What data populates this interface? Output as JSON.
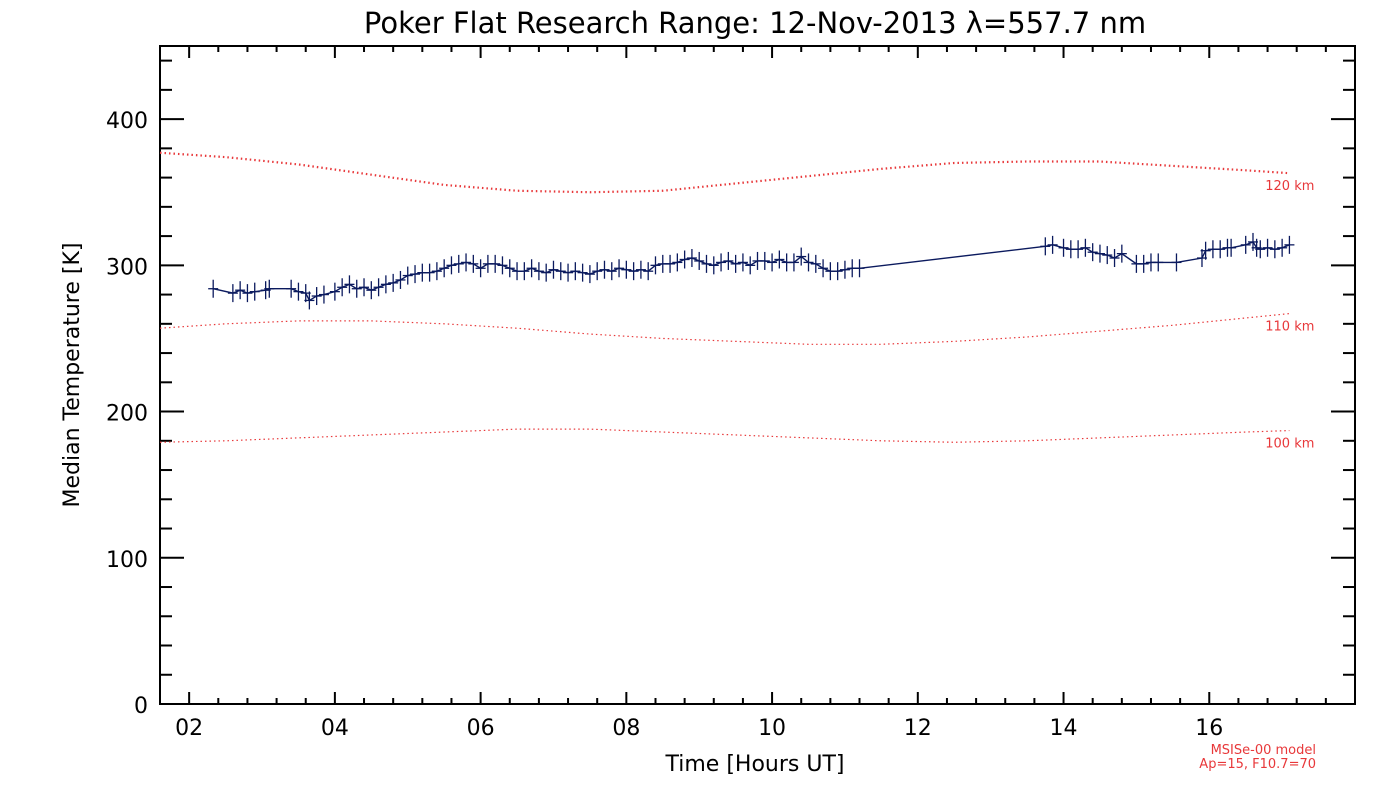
{
  "chart_data": {
    "type": "line",
    "title": "Poker Flat Research Range: 12-Nov-2013 λ=557.7 nm",
    "xlabel": "Time [Hours UT]",
    "ylabel": "Median Temperature [K]",
    "xlim": [
      1.6,
      18.0
    ],
    "ylim": [
      0,
      450
    ],
    "x_ticks": [
      2,
      4,
      6,
      8,
      10,
      12,
      14,
      16
    ],
    "x_tick_labels": [
      "02",
      "04",
      "06",
      "08",
      "10",
      "12",
      "14",
      "16"
    ],
    "y_ticks": [
      0,
      100,
      200,
      300,
      400
    ],
    "y_tick_labels": [
      "0",
      "100",
      "200",
      "300",
      "400"
    ],
    "grid": false,
    "colors": {
      "data": "#0b1a5e",
      "model": "#e8383a",
      "axes": "#000000"
    },
    "series": [
      {
        "x": [
          2.33,
          2.6,
          2.7,
          2.8,
          2.9,
          3.05,
          3.1,
          3.4,
          3.5,
          3.6,
          3.65,
          3.75,
          3.85,
          4.0,
          4.1,
          4.2,
          4.3,
          4.4,
          4.5,
          4.6,
          4.7,
          4.8,
          4.9,
          5.0,
          5.1,
          5.2,
          5.3,
          5.4,
          5.5,
          5.6,
          5.7,
          5.8,
          5.9,
          6.0,
          6.1,
          6.2,
          6.3,
          6.4,
          6.5,
          6.6,
          6.7,
          6.8,
          6.9,
          7.0,
          7.1,
          7.2,
          7.3,
          7.4,
          7.5,
          7.6,
          7.7,
          7.8,
          7.9,
          8.0,
          8.1,
          8.2,
          8.3,
          8.4,
          8.5,
          8.6,
          8.7,
          8.8,
          8.9,
          9.0,
          9.1,
          9.2,
          9.3,
          9.4,
          9.5,
          9.6,
          9.7,
          9.8,
          9.9,
          10.0,
          10.1,
          10.2,
          10.3,
          10.4,
          10.5,
          10.6,
          10.7,
          10.8,
          10.9,
          11.0,
          11.1,
          11.2,
          13.75,
          13.85,
          14.0,
          14.1,
          14.2,
          14.3,
          14.4,
          14.5,
          14.6,
          14.7,
          14.8,
          15.0,
          15.1,
          15.2,
          15.3,
          15.55,
          15.9,
          15.95,
          16.05,
          16.15,
          16.25,
          16.3,
          16.5,
          16.6,
          16.65,
          16.7,
          16.8,
          16.9,
          17.0,
          17.1
        ],
        "y": [
          284,
          281,
          283,
          281,
          282,
          283,
          284,
          284,
          282,
          281,
          276,
          279,
          280,
          282,
          285,
          287,
          284,
          285,
          283,
          285,
          287,
          288,
          290,
          293,
          294,
          295,
          295,
          296,
          298,
          300,
          301,
          302,
          301,
          298,
          301,
          301,
          300,
          298,
          296,
          296,
          298,
          296,
          295,
          297,
          296,
          295,
          296,
          295,
          294,
          296,
          297,
          296,
          298,
          297,
          296,
          297,
          296,
          300,
          301,
          301,
          302,
          304,
          305,
          303,
          301,
          300,
          302,
          303,
          301,
          302,
          300,
          303,
          303,
          302,
          304,
          302,
          302,
          306,
          302,
          301,
          298,
          296,
          296,
          297,
          298,
          298,
          313,
          314,
          312,
          311,
          311,
          312,
          309,
          308,
          307,
          305,
          308,
          301,
          301,
          302,
          302,
          302,
          305,
          310,
          311,
          311,
          312,
          312,
          314,
          316,
          312,
          311,
          312,
          311,
          312,
          314
        ]
      }
    ],
    "model_series": [
      {
        "name": "120 km",
        "x": [
          1.6,
          2.5,
          3.5,
          4.5,
          5.5,
          6.5,
          7.5,
          8.5,
          9.5,
          10.5,
          11.5,
          12.5,
          13.5,
          14.5,
          15.5,
          16.5,
          17.1
        ],
        "y": [
          377,
          374,
          369,
          362,
          355,
          351,
          350,
          351,
          356,
          361,
          366,
          370,
          371,
          371,
          368,
          365,
          363
        ]
      },
      {
        "name": "110 km",
        "x": [
          1.6,
          2.5,
          3.5,
          4.5,
          5.5,
          6.5,
          7.5,
          8.5,
          9.5,
          10.5,
          11.5,
          12.5,
          13.5,
          14.5,
          15.5,
          16.5,
          17.1
        ],
        "y": [
          257,
          260,
          262,
          262,
          260,
          257,
          253,
          250,
          248,
          246,
          246,
          248,
          251,
          255,
          259,
          264,
          267
        ]
      },
      {
        "name": "100 km",
        "x": [
          1.6,
          2.5,
          3.5,
          4.5,
          5.5,
          6.5,
          7.5,
          8.5,
          9.5,
          10.5,
          11.5,
          12.5,
          13.5,
          14.5,
          15.5,
          16.5,
          17.1
        ],
        "y": [
          179,
          180,
          182,
          184,
          186,
          188,
          188,
          186,
          184,
          182,
          180,
          179,
          180,
          182,
          184,
          186,
          187
        ]
      }
    ],
    "notes": [
      "MSISe-00 model",
      "Ap=15, F10.7=70"
    ]
  }
}
